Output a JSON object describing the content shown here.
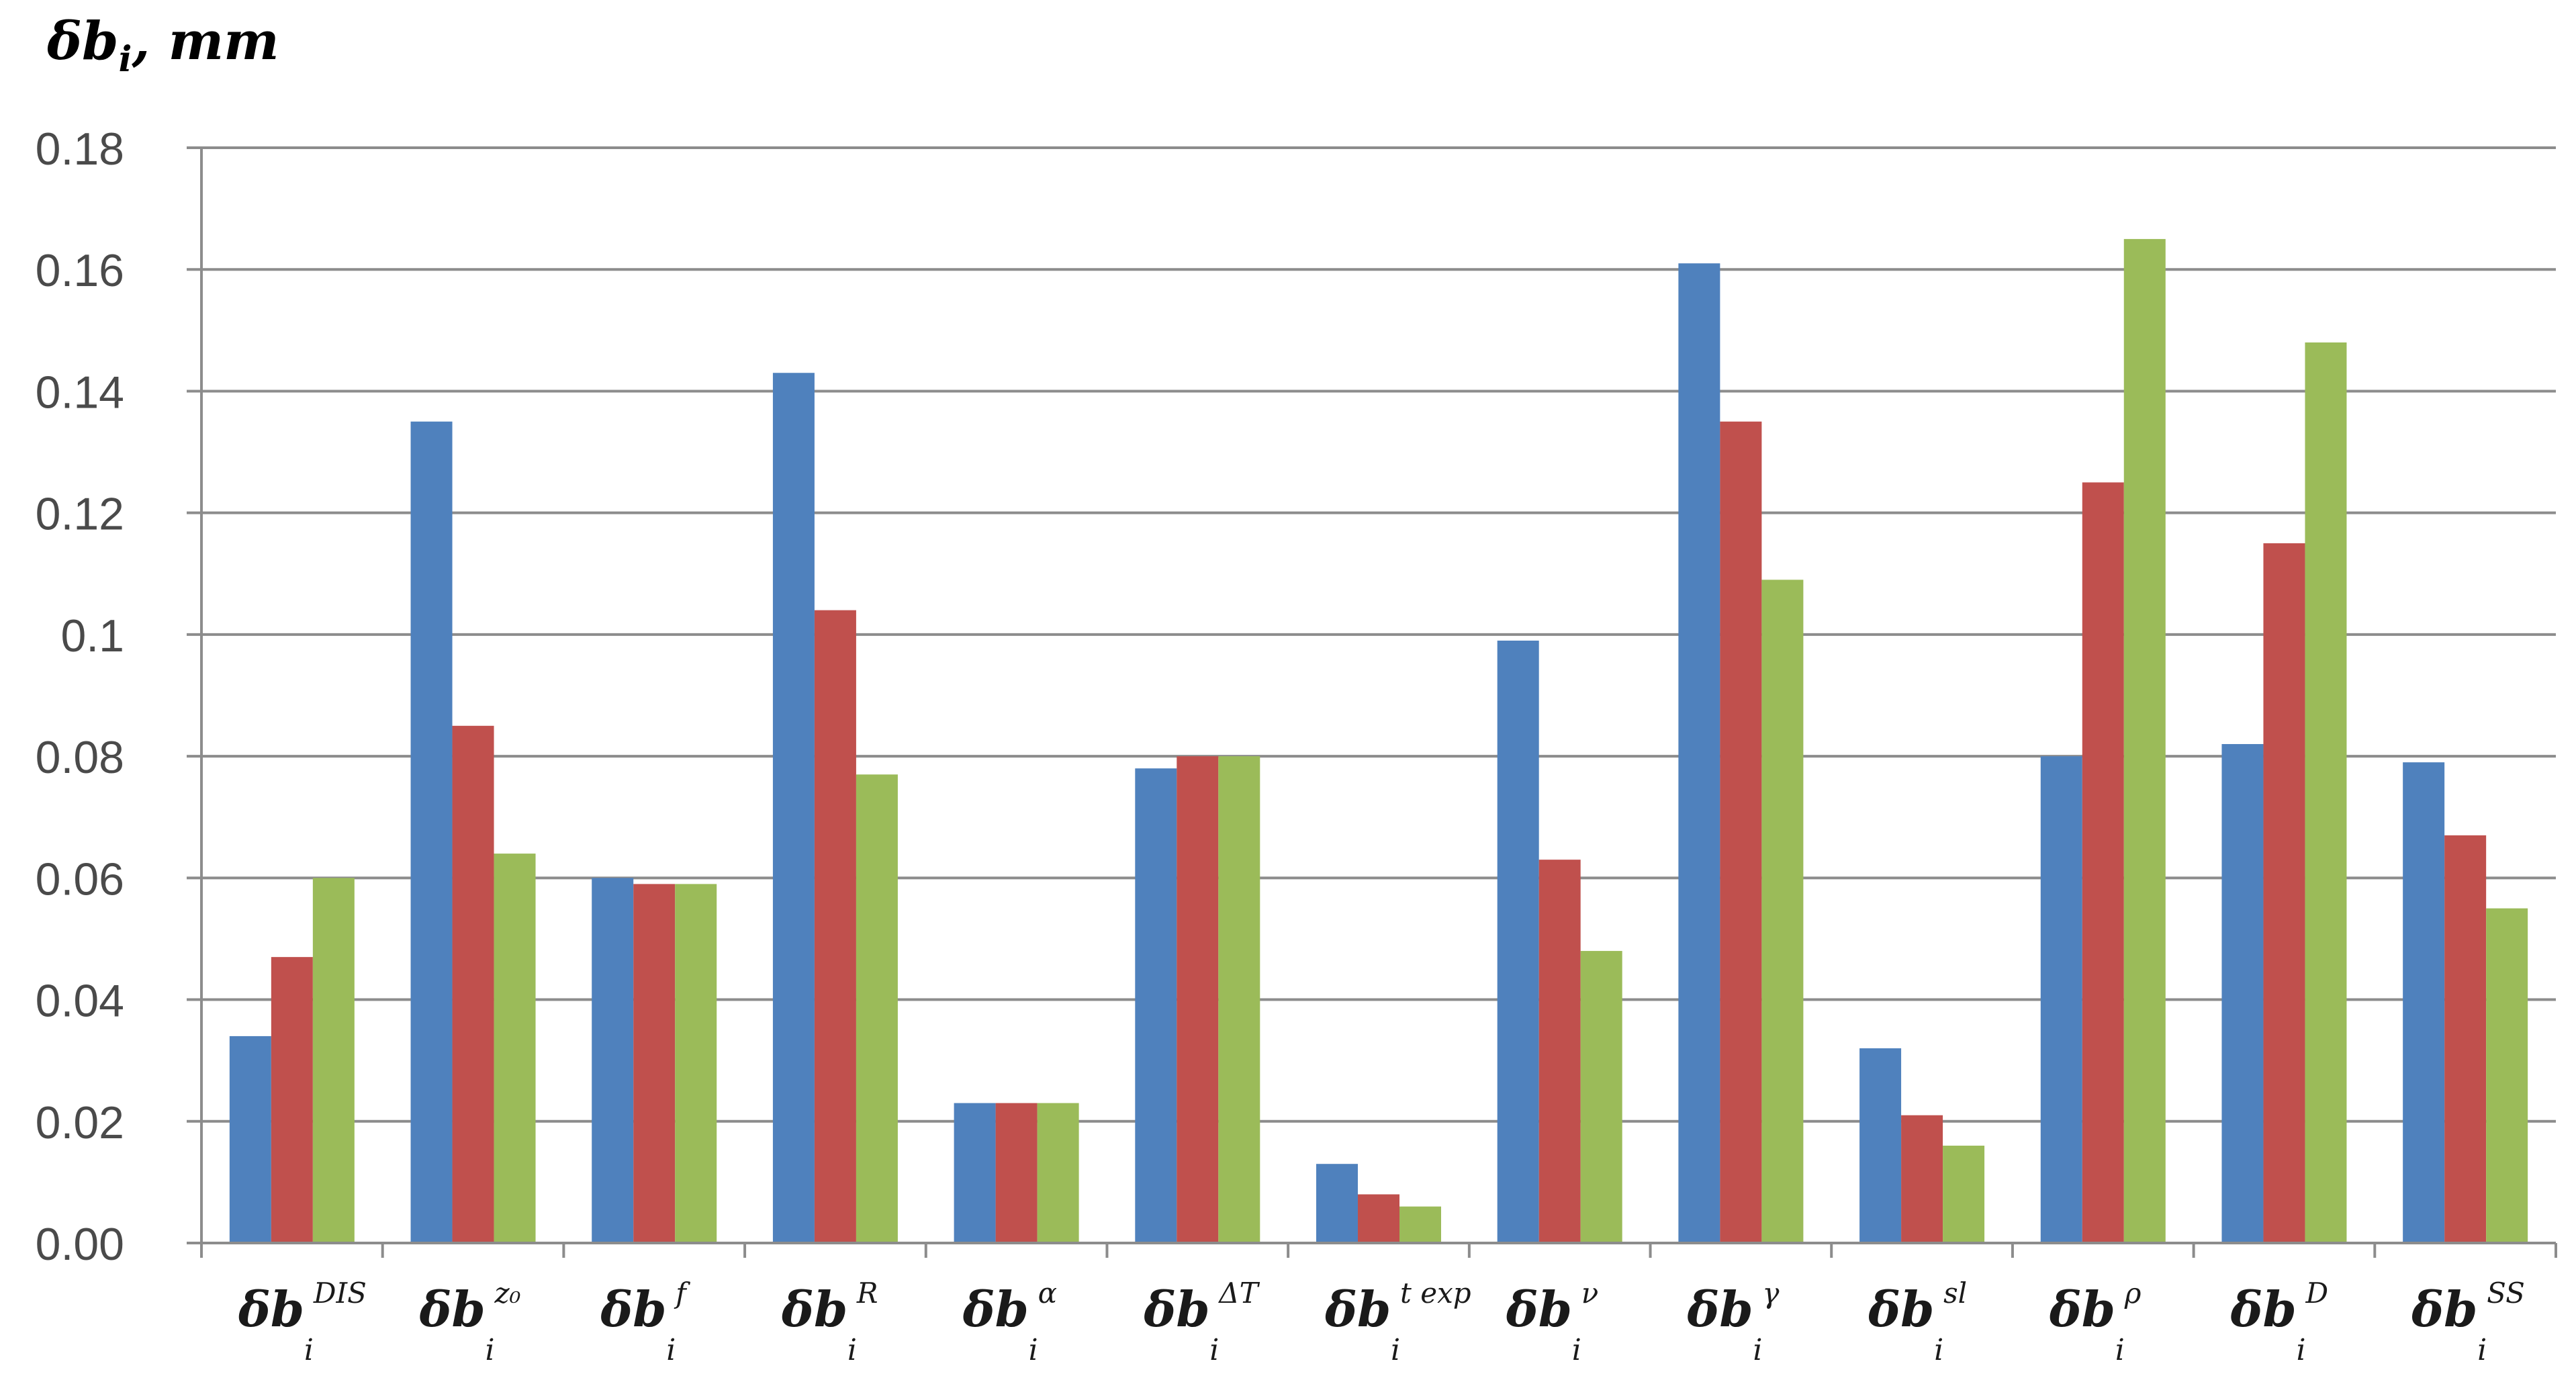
{
  "chart_data": {
    "type": "bar",
    "ylabel": {
      "base": "δb",
      "sub": "i",
      "tail": ", mm"
    },
    "ylim": [
      0,
      0.18
    ],
    "yticks": [
      "0.00",
      "0.02",
      "0.04",
      "0.06",
      "0.08",
      "0.1",
      "0.12",
      "0.14",
      "0.16",
      "0.18"
    ],
    "grid": true,
    "categories": [
      {
        "base": "δb",
        "sub": "i",
        "sup": "DIS"
      },
      {
        "base": "δb",
        "sub": "i",
        "sup": "z₀"
      },
      {
        "base": "δb",
        "sub": "i",
        "sup": "f"
      },
      {
        "base": "δb",
        "sub": "i",
        "sup": "R"
      },
      {
        "base": "δb",
        "sub": "i",
        "sup": "α"
      },
      {
        "base": "δb",
        "sub": "i",
        "sup": "ΔT"
      },
      {
        "base": "δb",
        "sub": "i",
        "sup": "t exp"
      },
      {
        "base": "δb",
        "sub": "i",
        "sup": "ν"
      },
      {
        "base": "δb",
        "sub": "i",
        "sup": "γ"
      },
      {
        "base": "δb",
        "sub": "i",
        "sup": "sl"
      },
      {
        "base": "δb",
        "sub": "i",
        "sup": "ρ"
      },
      {
        "base": "δb",
        "sub": "i",
        "sup": "D"
      },
      {
        "base": "δb",
        "sub": "i",
        "sup": "SS"
      }
    ],
    "series": [
      {
        "color": "#4f81bd",
        "values": [
          0.034,
          0.135,
          0.06,
          0.143,
          0.023,
          0.078,
          0.013,
          0.099,
          0.161,
          0.032,
          0.08,
          0.082,
          0.079
        ]
      },
      {
        "color": "#c0504d",
        "values": [
          0.047,
          0.085,
          0.059,
          0.104,
          0.023,
          0.08,
          0.008,
          0.063,
          0.135,
          0.021,
          0.125,
          0.115,
          0.067
        ]
      },
      {
        "color": "#9bbb59",
        "values": [
          0.06,
          0.064,
          0.059,
          0.077,
          0.023,
          0.08,
          0.006,
          0.048,
          0.109,
          0.016,
          0.165,
          0.148,
          0.055
        ]
      }
    ]
  }
}
